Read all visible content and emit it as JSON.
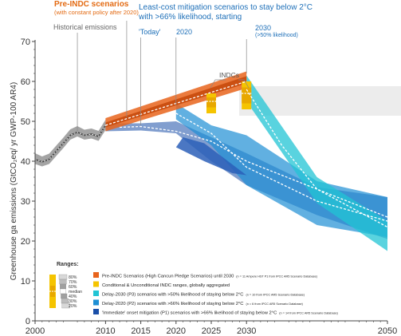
{
  "chart_data": {
    "type": "area",
    "title_pre_indc": "Pre-INDC scenarios",
    "subtitle_pre_indc": "(with constant policy after 2020)",
    "title_leastcost": "Least-cost mitigation scenarios to stay below 2°C",
    "subtitle_leastcost": "with >66% likelihood, starting",
    "label_historical": "Historical emissions",
    "label_today": "'Today'",
    "label_2020": "2020",
    "label_2030": "2030",
    "label_2030_sub": "(>50% likelihood)",
    "label_indcs": "INDCs",
    "xlabel": "",
    "ylabel": "Greenhouse ga emissions (GtCO₂eq/ yr GWP-100 AR4)",
    "xlim": [
      2000,
      2050
    ],
    "ylim": [
      0,
      70
    ],
    "x_ticks": [
      2000,
      2010,
      2015,
      2020,
      2025,
      2030,
      2050
    ],
    "y_ticks": [
      0,
      10,
      20,
      30,
      40,
      50,
      60,
      70
    ],
    "colors": {
      "pre_indc": "#e8641c",
      "indc": "#f5c400",
      "delay2030": "#22c4d4",
      "delay2020": "#1e8fd4",
      "immediate": "#1a4fa8",
      "historical": "#555555",
      "axis": "#444444",
      "header_orange": "#e36a12",
      "header_blue": "#1d6fb8"
    },
    "series": {
      "historical": {
        "points": [
          [
            2000,
            40.5
          ],
          [
            2001,
            39.8
          ],
          [
            2002,
            40.5
          ],
          [
            2003,
            42.5
          ],
          [
            2004,
            44.5
          ],
          [
            2005,
            46.5
          ],
          [
            2006,
            47.3
          ],
          [
            2007,
            46.5
          ],
          [
            2008,
            46.8
          ],
          [
            2009,
            46.2
          ],
          [
            2010,
            49.0
          ]
        ],
        "band_low": [
          [
            2000,
            39.3
          ],
          [
            2001,
            38.7
          ],
          [
            2002,
            39.3
          ],
          [
            2003,
            41.3
          ],
          [
            2004,
            43.3
          ],
          [
            2005,
            45.4
          ],
          [
            2006,
            46.2
          ],
          [
            2007,
            45.4
          ],
          [
            2008,
            45.7
          ],
          [
            2009,
            45.1
          ],
          [
            2010,
            47.8
          ]
        ],
        "band_high": [
          [
            2000,
            42.0
          ],
          [
            2001,
            41.2
          ],
          [
            2002,
            41.9
          ],
          [
            2003,
            43.9
          ],
          [
            2004,
            45.9
          ],
          [
            2005,
            48.0
          ],
          [
            2006,
            48.8
          ],
          [
            2007,
            47.9
          ],
          [
            2008,
            48.2
          ],
          [
            2009,
            47.6
          ],
          [
            2010,
            50.4
          ]
        ]
      },
      "pre_indc": {
        "full_range": [
          [
            2010,
            47.5
          ],
          [
            2030,
            58.3
          ],
          [
            2030,
            62.5
          ],
          [
            2010,
            50.8
          ]
        ],
        "inner_range": [
          [
            2010,
            48.5
          ],
          [
            2030,
            59.5
          ],
          [
            2030,
            61.3
          ],
          [
            2010,
            49.7
          ]
        ],
        "median": [
          [
            2010,
            49.0
          ],
          [
            2020,
            54.5
          ],
          [
            2030,
            60.0
          ]
        ]
      },
      "indc_ranges": [
        {
          "year": 2025,
          "full": [
            52.0,
            57.0
          ],
          "inner": [
            53.5,
            56.0
          ],
          "median": 55.0
        },
        {
          "year": 2030,
          "full": [
            53.0,
            60.0
          ],
          "inner": [
            54.5,
            58.5
          ],
          "median": 57.0
        }
      ],
      "immediate": {
        "full_range": [
          [
            2010,
            47.5
          ],
          [
            2015,
            47.7
          ],
          [
            2020,
            47.0
          ],
          [
            2025,
            40.0
          ],
          [
            2030,
            34.0
          ],
          [
            2040,
            26.5
          ],
          [
            2050,
            20.5
          ],
          [
            2050,
            31.0
          ],
          [
            2040,
            33.5
          ],
          [
            2030,
            42.0
          ],
          [
            2025,
            46.0
          ],
          [
            2020,
            50.0
          ],
          [
            2015,
            49.5
          ],
          [
            2010,
            49.5
          ]
        ],
        "median": [
          [
            2012,
            48.5
          ],
          [
            2015,
            48.7
          ],
          [
            2020,
            47.5
          ],
          [
            2025,
            45.0
          ],
          [
            2030,
            40.0
          ],
          [
            2040,
            33.0
          ],
          [
            2050,
            26.0
          ]
        ]
      },
      "delay2020": {
        "full_range": [
          [
            2020,
            54.5
          ],
          [
            2020,
            50.5
          ],
          [
            2025,
            44.0
          ],
          [
            2030,
            34.0
          ],
          [
            2040,
            24.0
          ],
          [
            2050,
            21.0
          ],
          [
            2050,
            31.0
          ],
          [
            2040,
            35.0
          ],
          [
            2030,
            46.5
          ],
          [
            2025,
            49.0
          ]
        ],
        "median": [
          [
            2020,
            52.0
          ],
          [
            2025,
            47.0
          ],
          [
            2030,
            38.5
          ],
          [
            2040,
            30.0
          ],
          [
            2050,
            25.0
          ]
        ]
      },
      "delay2030": {
        "full_range": [
          [
            2030,
            55.0
          ],
          [
            2040,
            29.5
          ],
          [
            2050,
            17.5
          ],
          [
            2050,
            25.0
          ],
          [
            2040,
            36.0
          ],
          [
            2030,
            61.5
          ]
        ],
        "median": [
          [
            2030,
            58.0
          ],
          [
            2035,
            44.0
          ],
          [
            2040,
            33.0
          ],
          [
            2050,
            23.5
          ]
        ]
      },
      "dark_wedge": [
        [
          2020,
          43.5
        ],
        [
          2024,
          40.0
        ],
        [
          2028,
          37.0
        ],
        [
          2030,
          36.5
        ],
        [
          2027,
          40.5
        ],
        [
          2024,
          44.5
        ],
        [
          2021,
          46.0
        ]
      ]
    },
    "legend": [
      {
        "key": "pre_indc",
        "label": "Pre-INDC Scenarios (High Cancun Pledge Scenarios) until 2030",
        "small": "(n = 11 Ampere HST P1 from IPCC AR5 Scenario Database)"
      },
      {
        "key": "indc",
        "label": "Conditional & Unconditional INDC ranges, globally aggregated",
        "small": ""
      },
      {
        "key": "delay2030",
        "label": "Delay-2030 (P3) scenarios with >50% likelihood of staying below 2°C",
        "small": "(n = 10 from IPCC AR5 Scenario Database)"
      },
      {
        "key": "delay2020",
        "label": "Delay-2020 (P2) scenarios with >66% likelihood of staying below 2°C",
        "small": "(n = 6 from IPCC AR5 Scenario Database)"
      },
      {
        "key": "immediate",
        "label": "'Immediate' onset mitigation (P1) scenarios with >66% likelihood of staying below 2°C",
        "small": "(n = 14 from IPCC AR5 Scenario Database)"
      }
    ],
    "ranges_legend": {
      "title": "Ranges:",
      "labels": [
        "80%",
        "70%",
        "60%",
        "median",
        "40%",
        "30%",
        "20%"
      ]
    },
    "grid": false
  }
}
